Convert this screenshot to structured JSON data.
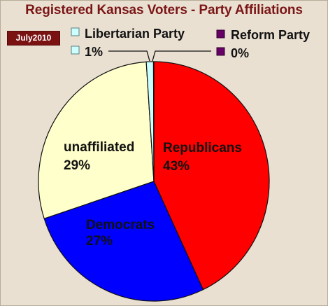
{
  "chart_data": {
    "type": "pie",
    "title": "Registered Kansas Voters",
    "subtitle": "Party Affiliations",
    "title_separator": "-",
    "date_label": "July2010",
    "slices": [
      {
        "label": "Republicans",
        "percent_label": "43%",
        "value": 43,
        "color": "#ff0000"
      },
      {
        "label": "Democrats",
        "percent_label": "27%",
        "value": 27,
        "color": "#0000ff"
      },
      {
        "label": "unaffiliated",
        "percent_label": "29%",
        "value": 29,
        "color": "#ffffcc"
      },
      {
        "label": "Libertarian Party",
        "percent_label": "1%",
        "value": 1,
        "color": "#ccffff"
      },
      {
        "label": "Reform Party",
        "percent_label": "0%",
        "value": 0.05,
        "color": "#660066"
      }
    ],
    "legend": "top"
  }
}
